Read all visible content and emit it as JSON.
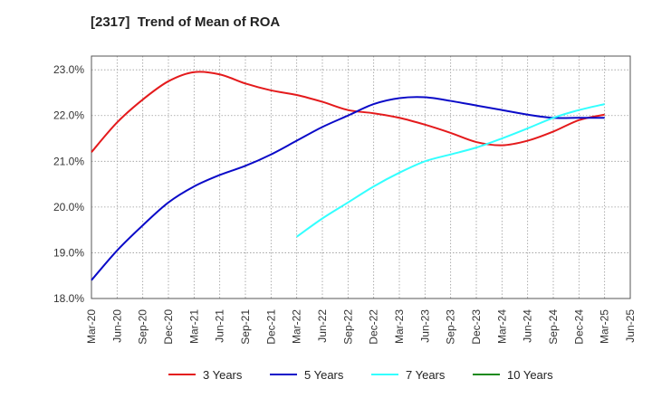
{
  "title": "[2317]  Trend of Mean of ROA",
  "chart_data": {
    "type": "line",
    "title": "[2317]  Trend of Mean of ROA",
    "xlabel": "",
    "ylabel": "",
    "categories": [
      "Mar-20",
      "Jun-20",
      "Sep-20",
      "Dec-20",
      "Mar-21",
      "Jun-21",
      "Sep-21",
      "Dec-21",
      "Mar-22",
      "Jun-22",
      "Sep-22",
      "Dec-22",
      "Mar-23",
      "Jun-23",
      "Sep-23",
      "Dec-23",
      "Mar-24",
      "Jun-24",
      "Sep-24",
      "Dec-24",
      "Mar-25",
      "Jun-25"
    ],
    "y_ticks": [
      "18.0%",
      "19.0%",
      "20.0%",
      "21.0%",
      "22.0%",
      "23.0%"
    ],
    "ylim": [
      18.0,
      23.3
    ],
    "grid": true,
    "legend_position": "bottom",
    "series": [
      {
        "name": "3 Years",
        "color": "#e41a1c",
        "values": [
          21.2,
          21.85,
          22.35,
          22.75,
          22.95,
          22.9,
          22.7,
          22.55,
          22.45,
          22.3,
          22.12,
          22.05,
          21.95,
          21.8,
          21.62,
          21.42,
          21.35,
          21.45,
          21.65,
          21.9,
          22.02,
          null
        ]
      },
      {
        "name": "5 Years",
        "color": "#0a0ac8",
        "values": [
          18.4,
          19.05,
          19.6,
          20.1,
          20.45,
          20.7,
          20.9,
          21.15,
          21.45,
          21.75,
          22.0,
          22.25,
          22.38,
          22.4,
          22.32,
          22.22,
          22.12,
          22.02,
          21.95,
          21.95,
          21.95,
          null
        ]
      },
      {
        "name": "7 Years",
        "color": "#33ffff",
        "values": [
          null,
          null,
          null,
          null,
          null,
          null,
          null,
          null,
          19.35,
          19.75,
          20.1,
          20.45,
          20.75,
          21.0,
          21.15,
          21.3,
          21.5,
          21.72,
          21.95,
          22.12,
          22.25,
          null
        ]
      },
      {
        "name": "10 Years",
        "color": "#1a8a1a",
        "values": [
          null,
          null,
          null,
          null,
          null,
          null,
          null,
          null,
          null,
          null,
          null,
          null,
          null,
          null,
          null,
          null,
          null,
          null,
          null,
          null,
          null,
          null
        ]
      }
    ]
  }
}
